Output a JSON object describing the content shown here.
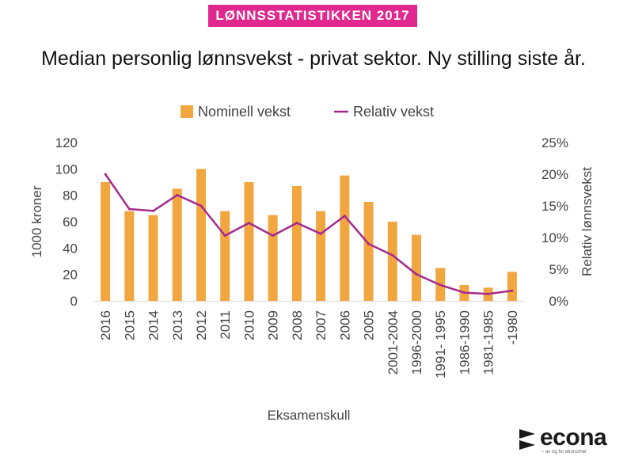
{
  "banner": "LØNNSSTATISTIKKEN 2017",
  "logo": {
    "word": "econa",
    "tagline": "– av og for økonomer"
  },
  "colors": {
    "bar": "#f2a640",
    "line": "#a52a8e",
    "banner": "#e0288f"
  },
  "chart_data": {
    "type": "bar",
    "title": "Median personlig lønnsvekst - privat sektor. Ny stilling siste år.",
    "xlabel": "Eksamenskull",
    "ylabel": "1000 kroner",
    "y2label": "Relativ lønnsvekst",
    "ylim": [
      0,
      120
    ],
    "y2lim": [
      0,
      25
    ],
    "yticks": [
      "0",
      "20",
      "40",
      "60",
      "80",
      "100",
      "120"
    ],
    "y2ticks": [
      "0%",
      "5%",
      "10%",
      "15%",
      "20%",
      "25%"
    ],
    "legend": [
      "Nominell vekst",
      "Relativ vekst"
    ],
    "categories": [
      "2016",
      "2015",
      "2014",
      "2013",
      "2012",
      "2011",
      "2010",
      "2009",
      "2008",
      "2007",
      "2006",
      "2005",
      "2001-2004",
      "1996-2000",
      "1991- 1995",
      "1986-1990",
      "1981-1985",
      "-1980"
    ],
    "series": [
      {
        "name": "Nominell vekst",
        "type": "bar",
        "axis": "left",
        "values": [
          90,
          68,
          65,
          85,
          100,
          68,
          90,
          65,
          87,
          68,
          95,
          75,
          60,
          50,
          25,
          12,
          10,
          22
        ]
      },
      {
        "name": "Relativ vekst",
        "type": "line",
        "axis": "right",
        "unit": "%",
        "values": [
          20,
          14.5,
          14.2,
          16.7,
          15,
          10.3,
          12.3,
          10.3,
          12.3,
          10.6,
          13.4,
          9,
          7.2,
          4.2,
          2.5,
          1.3,
          1.1,
          1.6
        ]
      }
    ]
  }
}
